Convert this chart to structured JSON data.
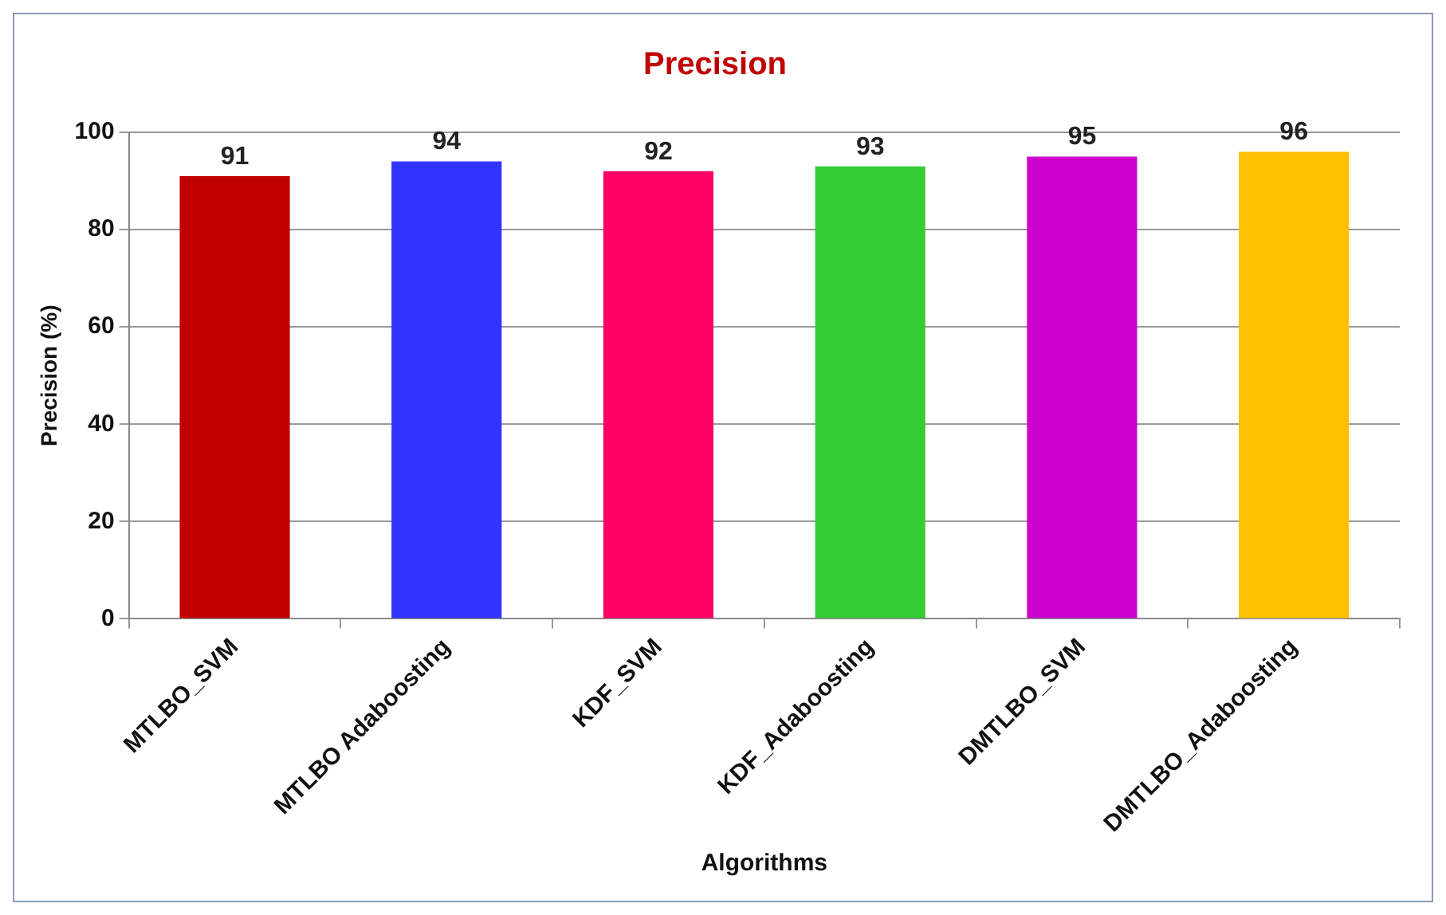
{
  "chart_data": {
    "type": "bar",
    "title": "Precision",
    "xlabel": "Algorithms",
    "ylabel": "Precision (%)",
    "categories": [
      "MTLBO_SVM",
      "MTLBO Adaboosting",
      "KDF_SVM",
      "KDF_Adaboosting",
      "DMTLBO_SVM",
      "DMTLBO_Adaboosting"
    ],
    "values": [
      91,
      94,
      92,
      93,
      95,
      96
    ],
    "colors": [
      "#c00000",
      "#3333ff",
      "#ff0066",
      "#33cc33",
      "#cc00cc",
      "#ffc000"
    ],
    "ylim": [
      0,
      100
    ],
    "yticks": [
      0,
      20,
      40,
      60,
      80,
      100
    ],
    "grid": "y",
    "legend": false,
    "data_labels": true
  }
}
